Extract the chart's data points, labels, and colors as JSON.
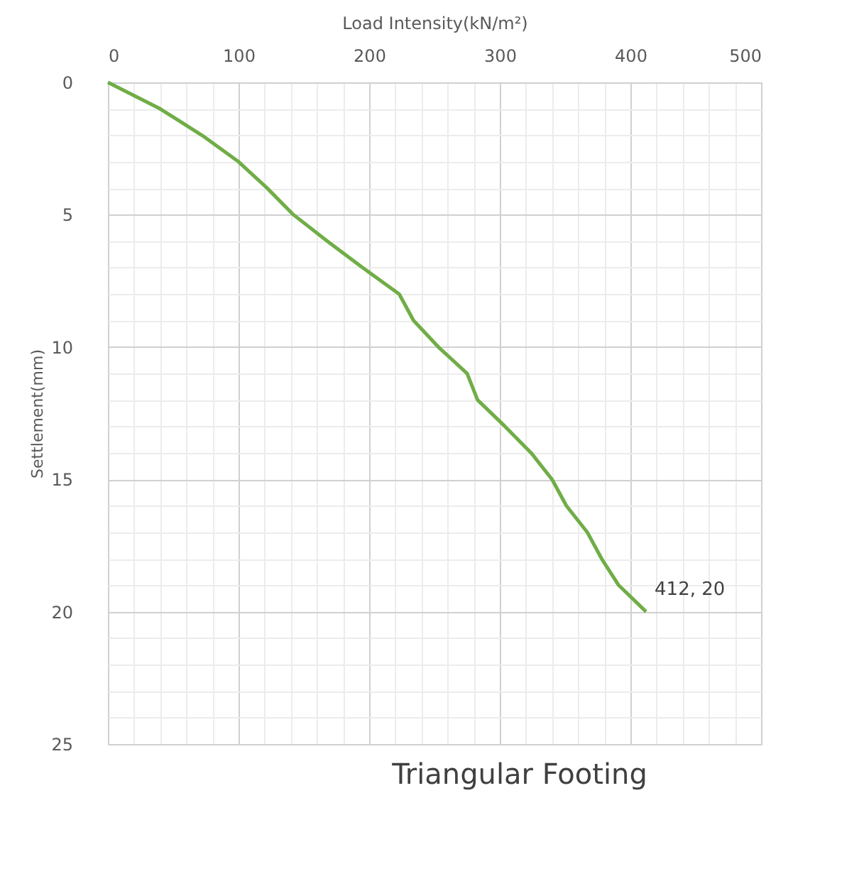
{
  "chart_data": {
    "type": "line",
    "title": "Triangular Footing",
    "xlabel": "Load Intensity(kN/m²)",
    "ylabel": "Settlement(mm)",
    "x": [
      0,
      40,
      72,
      100,
      122,
      142,
      168,
      195,
      223,
      234,
      253,
      275,
      283,
      304,
      324,
      340,
      351,
      367,
      378,
      391,
      412
    ],
    "series": [
      {
        "color": "#70ad47",
        "values": [
          0,
          1,
          2,
          3,
          4,
          5,
          6,
          7,
          8,
          9,
          10,
          11,
          12,
          13,
          14,
          15,
          16,
          17,
          18,
          19,
          20
        ]
      }
    ],
    "xlim": [
      0,
      500
    ],
    "xticks": [
      0,
      100,
      200,
      300,
      400,
      500
    ],
    "ylim": [
      25,
      0
    ],
    "yticks": [
      0,
      5,
      10,
      15,
      20,
      25
    ],
    "annotations": [
      {
        "text": "412, 20",
        "x": 412,
        "y": 20
      }
    ],
    "grid": true,
    "legend": false,
    "marker": "none",
    "line_style": "solid"
  }
}
